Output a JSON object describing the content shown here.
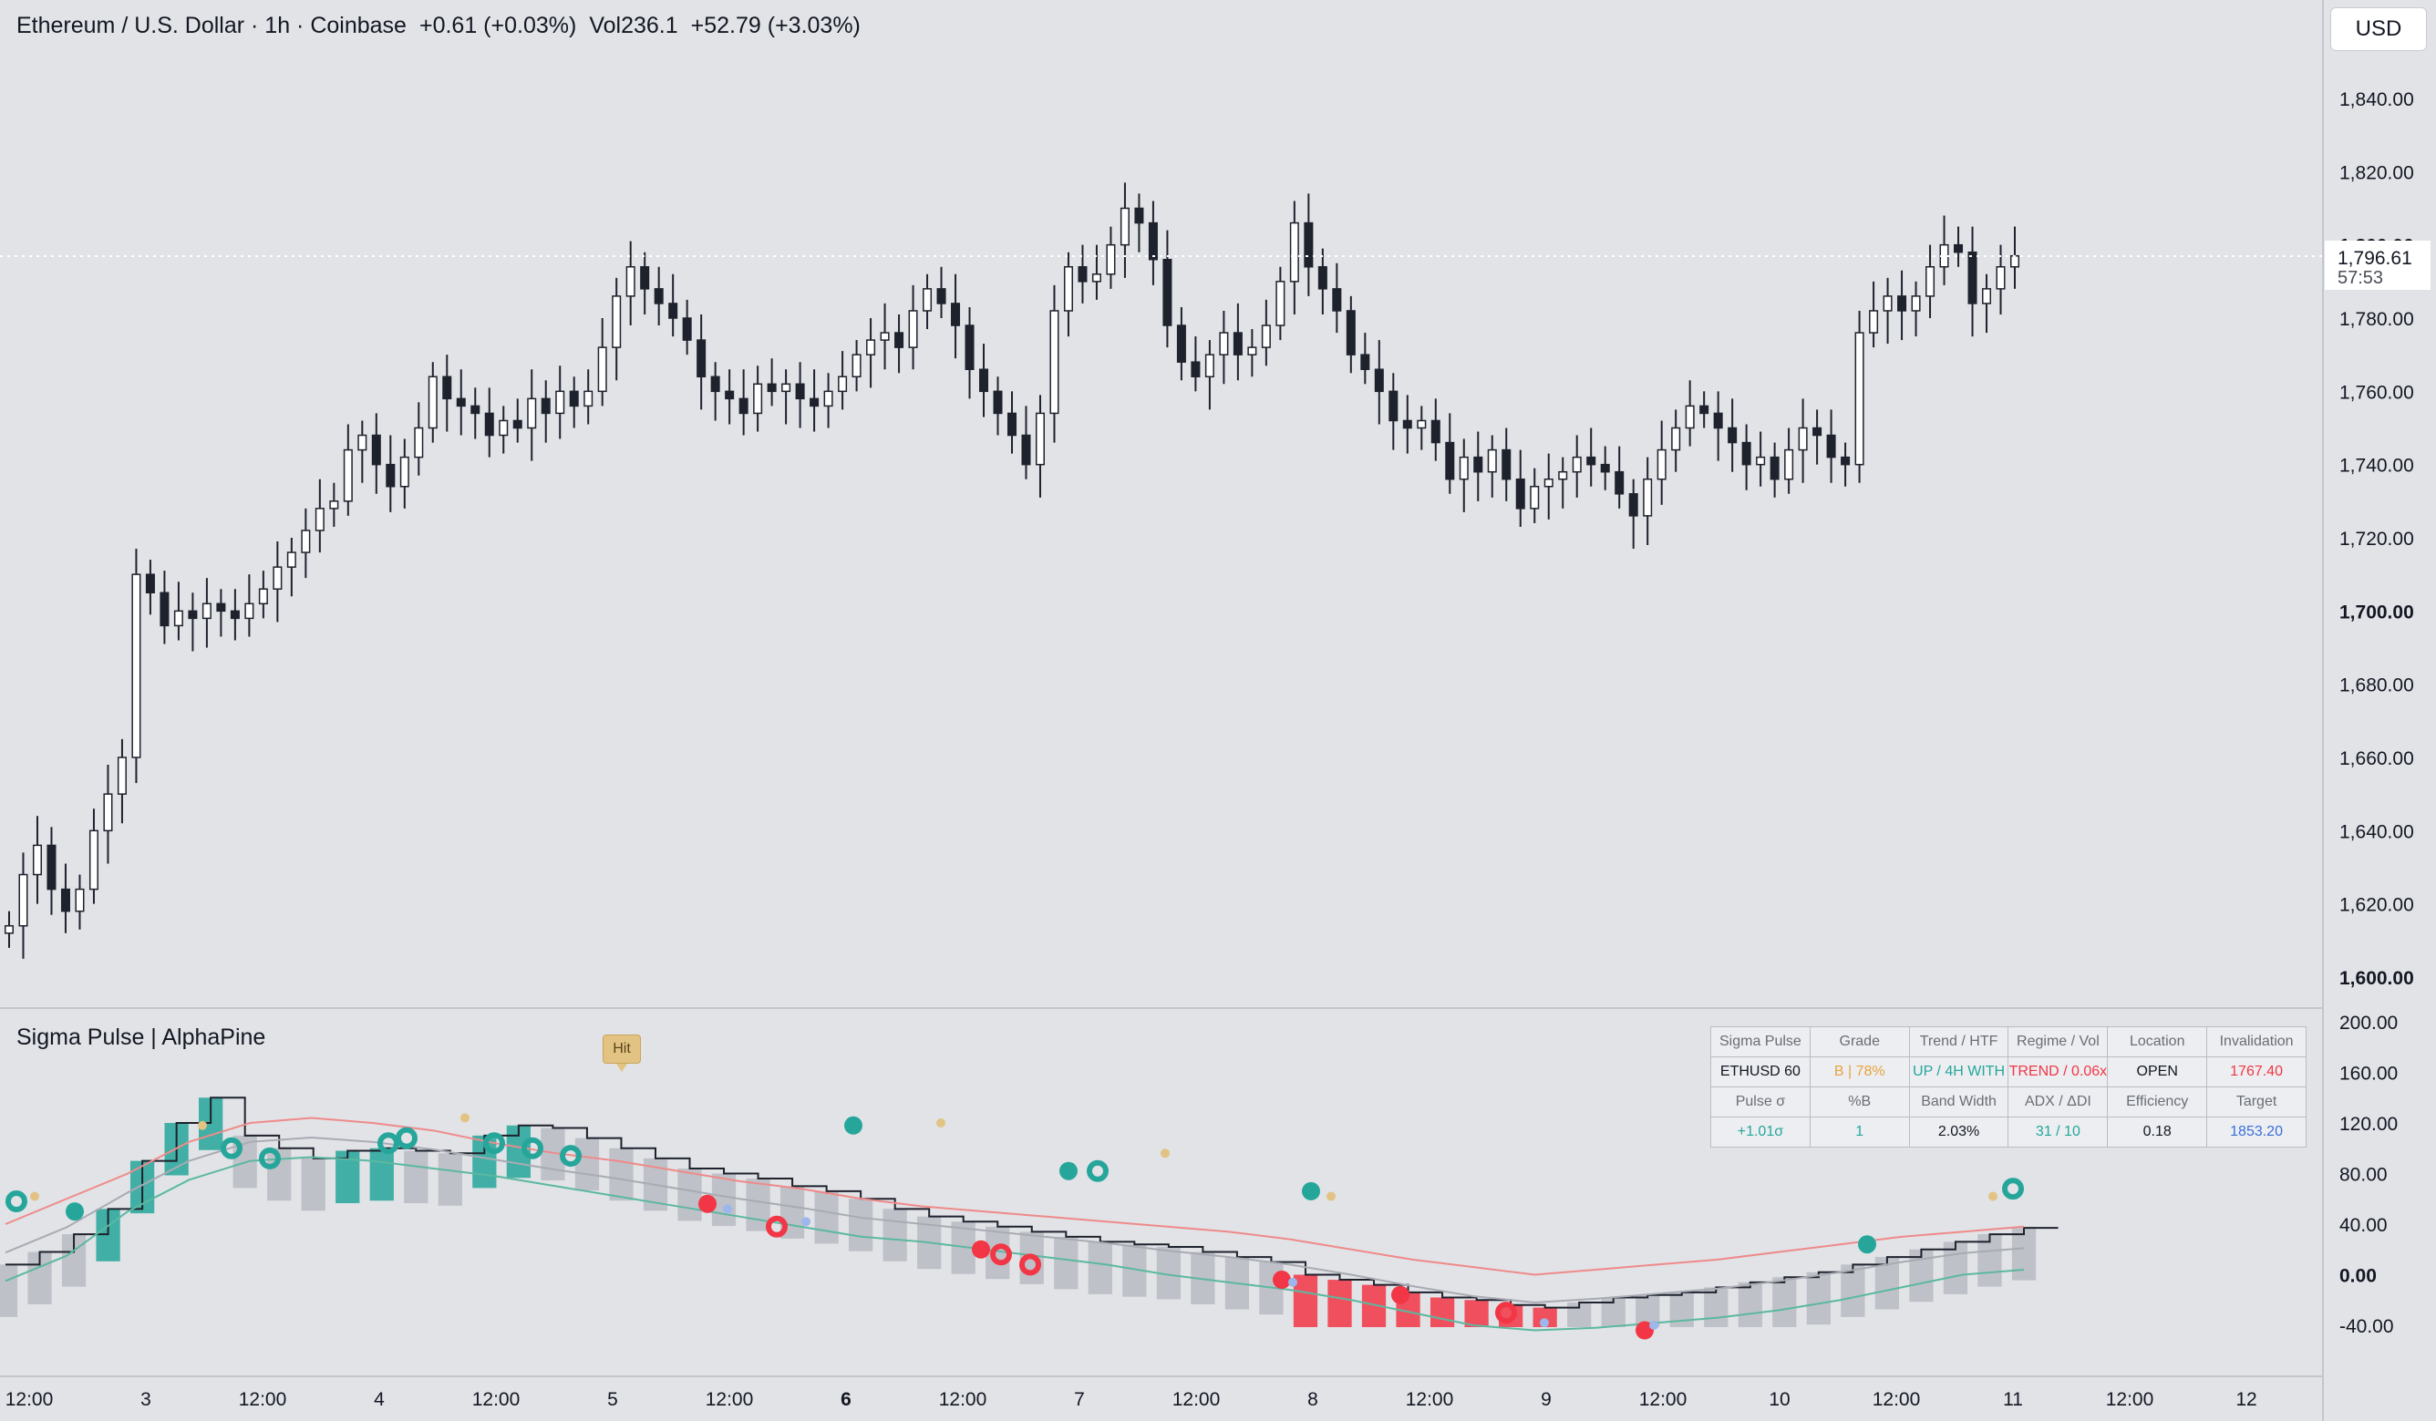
{
  "header": {
    "symbol": "Ethereum / U.S. Dollar · 1h · Coinbase",
    "change": "+0.61 (+0.03%)",
    "volume": "Vol236.1",
    "indicator_change": "+52.79 (+3.03%)"
  },
  "currency_button": "USD",
  "price_axis": {
    "labels": [
      "1,840.00",
      "1,820.00",
      "1,800.00",
      "1,780.00",
      "1,760.00",
      "1,740.00",
      "1,720.00",
      "1,700.00",
      "1,680.00",
      "1,660.00",
      "1,640.00",
      "1,620.00",
      "1,600.00"
    ],
    "current_price": "1,796.61",
    "countdown": "57:53"
  },
  "indicator": {
    "title": "Sigma Pulse | AlphaPine",
    "hit_label": "Hit",
    "axis_labels": [
      "200.00",
      "160.00",
      "120.00",
      "80.00",
      "40.00",
      "0.00",
      "-40.00"
    ]
  },
  "time_axis": {
    "labels": [
      "12:00",
      "3",
      "12:00",
      "4",
      "12:00",
      "5",
      "12:00",
      "6",
      "12:00",
      "7",
      "12:00",
      "8",
      "12:00",
      "9",
      "12:00",
      "10",
      "12:00",
      "11",
      "12:00",
      "12"
    ]
  },
  "stats_table": {
    "header_row_1": [
      "Sigma Pulse",
      "Grade",
      "Trend / HTF",
      "Regime / Vol",
      "Location",
      "Invalidation"
    ],
    "value_row_1": [
      "ETHUSD 60",
      "B | 78%",
      "UP / 4H WITH",
      "TREND / 0.06x",
      "OPEN",
      "1767.40"
    ],
    "header_row_2": [
      "Pulse σ",
      "%B",
      "Band Width",
      "ADX / ΔDI",
      "Efficiency",
      "Target"
    ],
    "value_row_2": [
      "+1.01σ",
      "1",
      "2.03%",
      "31 / 10",
      "0.18",
      "1853.20"
    ]
  },
  "colors": {
    "background": "#e1e3e7",
    "candle_up": "#ffffff",
    "candle_down": "#1e222d",
    "teal": "#26a69a",
    "red": "#f23645",
    "orange": "#e8a33b",
    "blue": "#3a6fd8",
    "upper_band": "#ef8a8a",
    "lower_band": "#5bb8a0"
  },
  "chart_data": {
    "type": "candlestick",
    "symbol": "ETHUSD",
    "interval": "1h",
    "y_range": [
      1600,
      1845
    ],
    "last_price": 1796.61,
    "closes": [
      1614,
      1628,
      1636,
      1624,
      1618,
      1624,
      1640,
      1650,
      1660,
      1710,
      1705,
      1696,
      1700,
      1698,
      1702,
      1700,
      1698,
      1702,
      1706,
      1712,
      1716,
      1722,
      1728,
      1730,
      1744,
      1748,
      1740,
      1734,
      1742,
      1750,
      1764,
      1758,
      1756,
      1754,
      1748,
      1752,
      1750,
      1758,
      1754,
      1760,
      1756,
      1760,
      1772,
      1786,
      1794,
      1788,
      1784,
      1780,
      1774,
      1764,
      1760,
      1758,
      1754,
      1762,
      1760,
      1762,
      1758,
      1756,
      1760,
      1764,
      1770,
      1774,
      1776,
      1772,
      1782,
      1788,
      1784,
      1778,
      1766,
      1760,
      1754,
      1748,
      1740,
      1754,
      1782,
      1794,
      1790,
      1792,
      1800,
      1810,
      1806,
      1796,
      1778,
      1768,
      1764,
      1770,
      1776,
      1770,
      1772,
      1778,
      1790,
      1806,
      1794,
      1788,
      1782,
      1770,
      1766,
      1760,
      1752,
      1750,
      1752,
      1746,
      1736,
      1742,
      1738,
      1744,
      1736,
      1728,
      1734,
      1736,
      1738,
      1742,
      1740,
      1738,
      1732,
      1726,
      1736,
      1744,
      1750,
      1756,
      1754,
      1750,
      1746,
      1740,
      1742,
      1736,
      1744,
      1750,
      1748,
      1742,
      1740,
      1776,
      1782,
      1786,
      1782,
      1786,
      1794,
      1800,
      1798,
      1784,
      1788,
      1794,
      1797
    ],
    "sigma_pulse": [
      8,
      18,
      32,
      52,
      90,
      120,
      140,
      110,
      100,
      92,
      98,
      100,
      98,
      96,
      110,
      118,
      116,
      108,
      100,
      92,
      84,
      80,
      76,
      70,
      66,
      60,
      52,
      46,
      42,
      38,
      34,
      30,
      26,
      24,
      22,
      18,
      14,
      10,
      0,
      -4,
      -8,
      -14,
      -18,
      -20,
      -24,
      -26,
      -22,
      -18,
      -16,
      -14,
      -10,
      -6,
      -2,
      2,
      8,
      14,
      20,
      26,
      32,
      37
    ],
    "upper_band": [
      40,
      60,
      80,
      105,
      120,
      124,
      120,
      114,
      104,
      96,
      90,
      82,
      74,
      68,
      60,
      54,
      50,
      46,
      42,
      38,
      34,
      28,
      20,
      12,
      6,
      0,
      4,
      8,
      12,
      18,
      24,
      30,
      34,
      38
    ],
    "lower_band": [
      -5,
      15,
      50,
      75,
      90,
      93,
      90,
      84,
      78,
      70,
      62,
      54,
      46,
      38,
      30,
      26,
      20,
      14,
      8,
      0,
      -6,
      -12,
      -20,
      -30,
      -40,
      -44,
      -42,
      -38,
      -34,
      -28,
      -20,
      -10,
      0,
      4
    ]
  }
}
